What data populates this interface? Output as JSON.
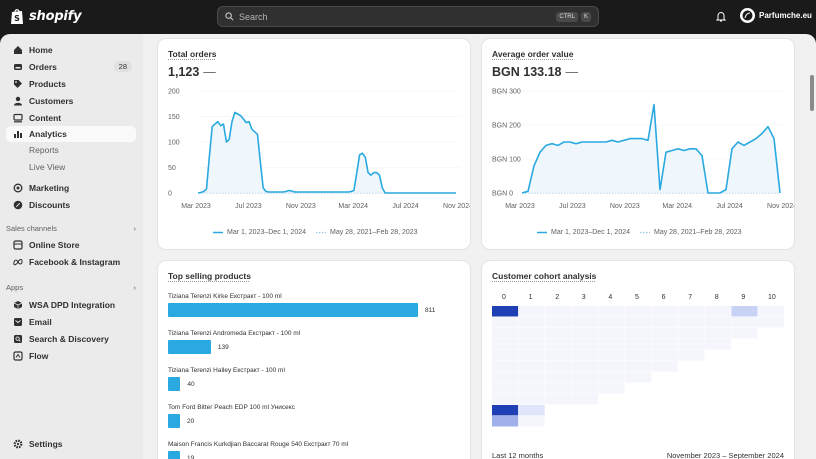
{
  "brand": {
    "name": "shopify"
  },
  "search": {
    "placeholder": "Search",
    "shortcut_1": "CTRL",
    "shortcut_2": "K"
  },
  "store": {
    "name": "Parfumche.eu"
  },
  "sidebar": {
    "items": [
      {
        "label": "Home",
        "icon": "home-icon"
      },
      {
        "label": "Orders",
        "icon": "orders-icon",
        "badge": "28"
      },
      {
        "label": "Products",
        "icon": "tag-icon"
      },
      {
        "label": "Customers",
        "icon": "person-icon"
      },
      {
        "label": "Content",
        "icon": "content-icon"
      },
      {
        "label": "Analytics",
        "icon": "chart-icon"
      }
    ],
    "analytics_sub": [
      "Reports",
      "Live View"
    ],
    "items2": [
      {
        "label": "Marketing",
        "icon": "target-icon"
      },
      {
        "label": "Discounts",
        "icon": "discount-icon"
      }
    ],
    "sales_channels_label": "Sales channels",
    "channels": [
      {
        "label": "Online Store",
        "icon": "store-icon"
      },
      {
        "label": "Facebook & Instagram",
        "icon": "meta-icon"
      }
    ],
    "apps_label": "Apps",
    "apps": [
      {
        "label": "WSA DPD Integration",
        "icon": "box-icon"
      },
      {
        "label": "Email",
        "icon": "email-icon"
      },
      {
        "label": "Search & Discovery",
        "icon": "search-app-icon"
      },
      {
        "label": "Flow",
        "icon": "flow-icon"
      }
    ],
    "settings_label": "Settings"
  },
  "cards": {
    "total_orders": {
      "title": "Total orders",
      "value": "1,123",
      "delta": "—",
      "legend_current": "Mar 1, 2023–Dec 1, 2024",
      "legend_previous": "May 28, 2021–Feb 28, 2023"
    },
    "aov": {
      "title": "Average order value",
      "value": "BGN 133.18",
      "delta": "—",
      "legend_current": "Mar 1, 2023–Dec 1, 2024",
      "legend_previous": "May 28, 2021–Feb 28, 2023"
    },
    "top_products": {
      "title": "Top selling products",
      "items": [
        {
          "name": "Tiziana Terenzi Kirke Екстракт - 100 ml",
          "value": 811,
          "value_label": "811"
        },
        {
          "name": "Tiziana Terenzi Andromeda Екстракт - 100 ml",
          "value": 139,
          "value_label": "139"
        },
        {
          "name": "Tiziana Terenzi Halley Екстракт - 100 ml",
          "value": 40,
          "value_label": "40"
        },
        {
          "name": "Tom Ford Bitter Peach EDP 100 ml Унисекс",
          "value": 20,
          "value_label": "20"
        },
        {
          "name": "Maison Francis Kurkdjian Baccarat Rouge 540 Екстракт 70 ml",
          "value": 19,
          "value_label": "19"
        }
      ]
    },
    "cohort": {
      "title": "Customer cohort analysis",
      "columns": [
        "0",
        "1",
        "2",
        "3",
        "4",
        "5",
        "6",
        "7",
        "8",
        "9",
        "10"
      ],
      "footer_left": "Last 12 months",
      "footer_right": "November 2023 – September 2024"
    }
  },
  "chart_data": [
    {
      "type": "line",
      "title": "Total orders",
      "x_ticks": [
        "Mar 2023",
        "Jul 2023",
        "Nov 2023",
        "Mar 2024",
        "Jul 2024",
        "Nov 2024"
      ],
      "y_ticks": [
        "200",
        "150",
        "100",
        "50",
        "0"
      ],
      "ylim": [
        0,
        200
      ],
      "x": [
        0,
        1,
        2,
        3,
        4,
        5,
        6,
        7,
        8,
        9,
        10,
        11,
        12,
        13,
        14,
        15,
        16,
        17,
        18,
        19,
        20,
        21,
        22,
        23,
        24,
        25,
        26,
        27,
        28,
        29,
        30,
        31,
        32,
        33,
        34,
        35,
        36,
        37,
        38,
        39,
        40,
        41,
        42,
        43,
        44,
        45,
        46,
        47,
        48,
        49,
        50,
        51,
        52,
        53,
        54,
        55,
        56,
        57,
        58,
        59,
        60,
        61,
        62,
        63,
        64,
        65,
        66,
        67,
        68,
        69,
        70,
        71,
        72,
        73,
        74,
        75,
        76,
        77,
        78,
        79,
        80,
        81,
        82,
        83,
        84,
        85,
        86,
        87,
        88,
        89,
        90,
        91
      ],
      "series": [
        {
          "name": "Mar 1, 2023–Dec 1, 2024",
          "style": "solid",
          "values": [
            0,
            1,
            3,
            8,
            70,
            130,
            135,
            140,
            132,
            135,
            100,
            105,
            140,
            158,
            155,
            152,
            145,
            138,
            140,
            125,
            120,
            115,
            60,
            10,
            3,
            2,
            2,
            2,
            2,
            2,
            2,
            3,
            5,
            4,
            2,
            2,
            2,
            2,
            2,
            2,
            2,
            2,
            2,
            2,
            2,
            2,
            2,
            2,
            2,
            2,
            2,
            2,
            2,
            2,
            3,
            5,
            40,
            75,
            78,
            70,
            40,
            35,
            40,
            40,
            35,
            10,
            0,
            0,
            0,
            0,
            0,
            0,
            0,
            0,
            0,
            0,
            0,
            0,
            0,
            0,
            0,
            0,
            0,
            0,
            0,
            0,
            0,
            0,
            0,
            0,
            0,
            0
          ]
        },
        {
          "name": "May 28, 2021–Feb 28, 2023",
          "style": "dotted",
          "values": "flat at 0"
        }
      ]
    },
    {
      "type": "line",
      "title": "Average order value",
      "x_ticks": [
        "Mar 2023",
        "Jul 2023",
        "Nov 2023",
        "Mar 2024",
        "Jul 2024",
        "Nov 2024"
      ],
      "y_ticks": [
        "BGN 300",
        "BGN 200",
        "BGN 100",
        "BGN 0"
      ],
      "ylim": [
        0,
        300
      ],
      "series": [
        {
          "name": "Mar 1, 2023–Dec 1, 2024",
          "style": "solid",
          "values": [
            0,
            5,
            80,
            120,
            140,
            145,
            140,
            150,
            150,
            145,
            150,
            150,
            150,
            150,
            150,
            155,
            150,
            155,
            160,
            160,
            160,
            155,
            260,
            10,
            120,
            125,
            130,
            125,
            130,
            130,
            110,
            0,
            0,
            0,
            10,
            130,
            150,
            140,
            150,
            160,
            175,
            195,
            160,
            0
          ]
        },
        {
          "name": "May 28, 2021–Feb 28, 2023",
          "style": "dotted",
          "values": "flat at 0"
        }
      ]
    },
    {
      "type": "bar",
      "title": "Top selling products",
      "categories": [
        "Tiziana Terenzi Kirke Екстракт - 100 ml",
        "Tiziana Terenzi Andromeda Екстракт - 100 ml",
        "Tiziana Terenzi Halley Екстракт - 100 ml",
        "Tom Ford Bitter Peach EDP 100 ml Унисекс",
        "Maison Francis Kurkdjian Baccarat Rouge 540 Екстракт 70 ml"
      ],
      "values": [
        811,
        139,
        40,
        20,
        19
      ]
    }
  ]
}
